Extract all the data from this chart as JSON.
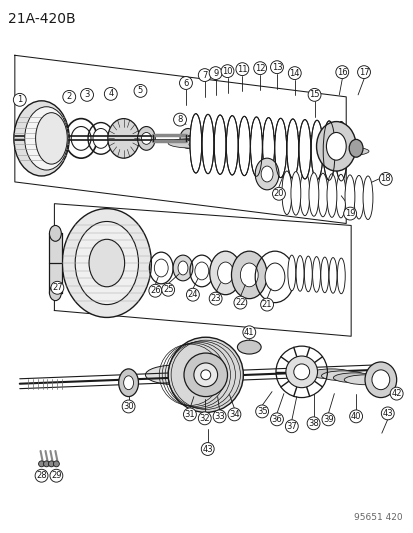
{
  "title": "21A-420B",
  "watermark": "95651 420",
  "bg_color": "#ffffff",
  "line_color": "#1a1a1a",
  "title_fontsize": 10,
  "label_fontsize": 6,
  "watermark_fontsize": 6.5
}
